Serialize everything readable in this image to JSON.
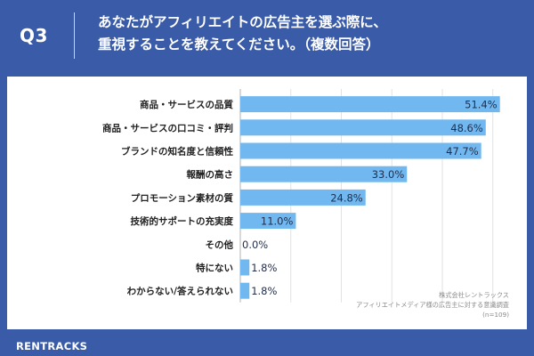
{
  "header": {
    "question_number": "Q3",
    "question_line1": "あなたがアフィリエイトの広告主を選ぶ際に、",
    "question_line2": "重視することを教えてください。（複数回答）"
  },
  "chart_data": {
    "type": "bar",
    "orientation": "horizontal",
    "categories": [
      "商品・サービスの品質",
      "商品・サービスの口コミ・評判",
      "ブランドの知名度と信頼性",
      "報酬の高さ",
      "プロモーション素材の質",
      "技術的サポートの充実度",
      "その他",
      "特にない",
      "わからない/答えられない"
    ],
    "values": [
      51.4,
      48.6,
      47.7,
      33.0,
      24.8,
      11.0,
      0.0,
      1.8,
      1.8
    ],
    "data_labels": [
      "51.4%",
      "48.6%",
      "47.7%",
      "33.0%",
      "24.8%",
      "11.0%",
      "0.0%",
      "1.8%",
      "1.8%"
    ],
    "xlim": [
      0,
      60
    ],
    "grid": true,
    "bar_color": "#72b8f0"
  },
  "footer": {
    "logo": "RENTRACKS",
    "source_line1": "株式会社レントラックス",
    "source_line2": "アフィリエイトメディア様の広告主に対する意識調査",
    "source_line3": "(n=109)"
  }
}
